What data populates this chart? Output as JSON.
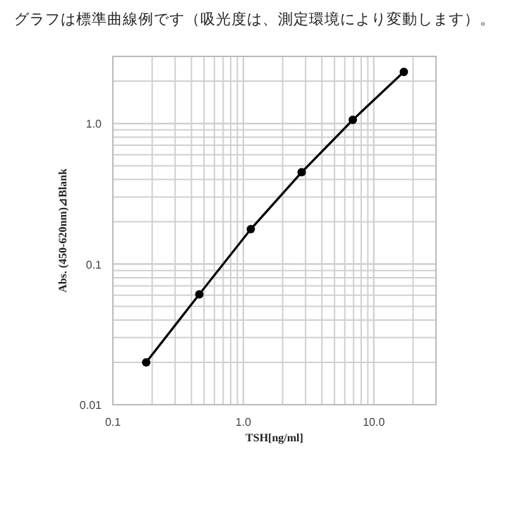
{
  "chart_data": {
    "type": "line",
    "title": "グラフは標準曲線例です（吸光度は、測定環境により変動します）。",
    "xlabel": "TSH[ng/ml]",
    "ylabel": "Abs. (450-620nm)⊿Blank",
    "x": [
      0.18,
      0.46,
      1.14,
      2.8,
      6.9,
      17
    ],
    "series": [
      {
        "color": "#000000",
        "values": [
          0.02,
          0.061,
          0.177,
          0.45,
          1.06,
          2.33
        ]
      }
    ],
    "log": "xy",
    "xlim": [
      0.1,
      30
    ],
    "ylim": [
      0.01,
      3
    ],
    "xticks": [
      {
        "value": 0.1,
        "label": "0.1"
      },
      {
        "value": 1,
        "label": "1.0"
      },
      {
        "value": 10,
        "label": "10.0"
      }
    ],
    "yticks": [
      {
        "value": 0.01,
        "label": "0.01"
      },
      {
        "value": 0.1,
        "label": "0.1"
      },
      {
        "value": 1,
        "label": "1.0"
      }
    ],
    "grid": true,
    "marker": "circle",
    "line_style": "solid"
  }
}
